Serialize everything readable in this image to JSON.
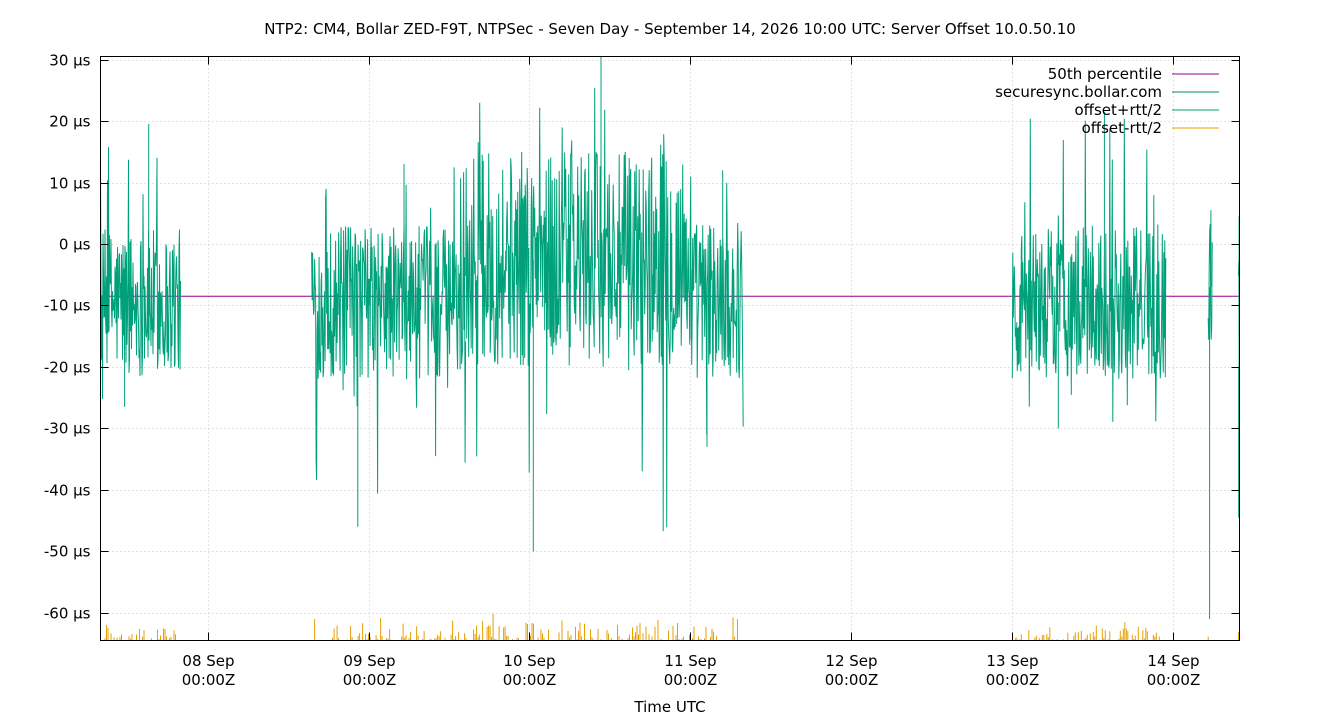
{
  "chart_data": {
    "type": "line",
    "title": "NTP2: CM4, Bollar ZED-F9T, NTPSec - Seven Day - September 14, 2026 10:00 UTC: Server Offset 10.0.50.10",
    "xlabel": "Time UTC",
    "ylabel": "",
    "y_unit": "µs",
    "ylim": [
      -64.5,
      30.5
    ],
    "xlim": [
      "2026-09-07T08:00Z",
      "2026-09-14T10:00Z"
    ],
    "x_ticks": [
      {
        "line1": "08 Sep",
        "line2": "00:00Z",
        "at": "2026-09-08T00:00Z"
      },
      {
        "line1": "09 Sep",
        "line2": "00:00Z",
        "at": "2026-09-09T00:00Z"
      },
      {
        "line1": "10 Sep",
        "line2": "00:00Z",
        "at": "2026-09-10T00:00Z"
      },
      {
        "line1": "11 Sep",
        "line2": "00:00Z",
        "at": "2026-09-11T00:00Z"
      },
      {
        "line1": "12 Sep",
        "line2": "00:00Z",
        "at": "2026-09-12T00:00Z"
      },
      {
        "line1": "13 Sep",
        "line2": "00:00Z",
        "at": "2026-09-13T00:00Z"
      },
      {
        "line1": "14 Sep",
        "line2": "00:00Z",
        "at": "2026-09-14T00:00Z"
      }
    ],
    "y_ticks": [
      {
        "value": 30,
        "label": "30 µs"
      },
      {
        "value": 20,
        "label": "20 µs"
      },
      {
        "value": 10,
        "label": "10 µs"
      },
      {
        "value": 0,
        "label": "0 µs"
      },
      {
        "value": -10,
        "label": "-10 µs"
      },
      {
        "value": -20,
        "label": "-20 µs"
      },
      {
        "value": -30,
        "label": "-30 µs"
      },
      {
        "value": -40,
        "label": "-40 µs"
      },
      {
        "value": -50,
        "label": "-50 µs"
      },
      {
        "value": -60,
        "label": "-60 µs"
      }
    ],
    "grid": true,
    "legend_position": "top-right",
    "series": [
      {
        "name": "50th percentile",
        "color": "#94008a",
        "style": "hline",
        "value": -8.5
      },
      {
        "name": "securesync.bollar.com",
        "color": "#00896b",
        "style": "line",
        "segments": []
      },
      {
        "name": "offset+rtt/2",
        "color": "#00a17a",
        "style": "noise-band",
        "segments": [
          {
            "start": "2026-09-07T08:00Z",
            "end": "2026-09-07T20:00Z",
            "center": -9.5,
            "half_range": 12,
            "spike_max": 19.5,
            "spike_min": -26.5
          },
          {
            "start": "2026-09-08T15:30Z",
            "end": "2026-09-09T14:30Z",
            "center": -9.5,
            "half_range": 12.5,
            "spike_max": 13,
            "spike_min": -46
          },
          {
            "start": "2026-09-09T14:30Z",
            "end": "2026-09-11T00:10Z",
            "center": -2.5,
            "half_range": 17.5,
            "spike_max": 30.5,
            "spike_min": -50
          },
          {
            "start": "2026-09-11T00:10Z",
            "end": "2026-09-11T08:00Z",
            "center": -9,
            "half_range": 13,
            "spike_max": 12,
            "spike_min": -33
          },
          {
            "start": "2026-09-13T00:05Z",
            "end": "2026-09-13T23:00Z",
            "center": -9.5,
            "half_range": 12.5,
            "spike_max": 21.5,
            "spike_min": -30
          },
          {
            "start": "2026-09-14T05:20Z",
            "end": "2026-09-14T06:00Z",
            "center": -7,
            "half_range": 11,
            "spike_max": 5.5,
            "spike_min": -61
          },
          {
            "start": "2026-09-14T09:50Z",
            "end": "2026-09-14T10:00Z",
            "center": -20,
            "half_range": 24,
            "spike_max": 4.5,
            "spike_min": -44.5
          }
        ]
      },
      {
        "name": "offset-rtt/2",
        "color": "#e6a000",
        "style": "floor-spikes",
        "segments": [
          {
            "start": "2026-09-07T08:00Z",
            "end": "2026-09-07T20:00Z",
            "max": -61.5
          },
          {
            "start": "2026-09-08T15:30Z",
            "end": "2026-09-11T08:00Z",
            "max": -60
          },
          {
            "start": "2026-09-13T00:05Z",
            "end": "2026-09-13T23:00Z",
            "max": -61
          },
          {
            "start": "2026-09-14T05:20Z",
            "end": "2026-09-14T06:00Z",
            "max": -61
          },
          {
            "start": "2026-09-14T09:50Z",
            "end": "2026-09-14T10:00Z",
            "max": -61
          }
        ]
      }
    ]
  }
}
